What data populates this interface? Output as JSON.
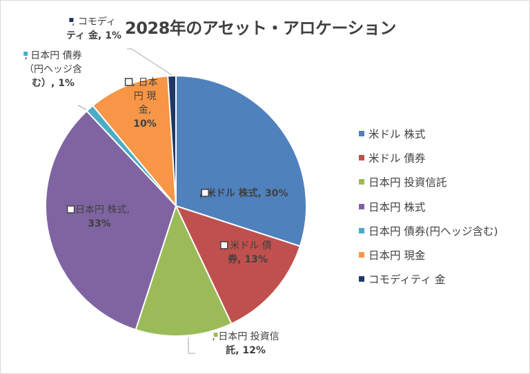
{
  "chart_data": {
    "type": "pie",
    "title": "2028年のアセット・アロケーション",
    "categories": [
      "米ドル 株式",
      "米ドル 債券",
      "日本円 投資信託",
      "日本円 株式",
      "日本円 債券(円ヘッジ含む)",
      "日本円 現金",
      "コモディティ 金"
    ],
    "values": [
      30,
      13,
      12,
      33,
      1,
      10,
      1
    ],
    "colors": [
      "#4f81bd",
      "#c0504d",
      "#9bbb59",
      "#8064a2",
      "#4bacc6",
      "#f79646",
      "#1f3864"
    ],
    "data_labels": [
      ", 米ドル 株式, 30%",
      ", 米ドル 債券, 13%",
      ", 日本円 投資信託, 12%",
      ", 日本円 株式, 33%",
      ", 日本円 債券 (円ヘッジ含む), 1%",
      ", 日本円 現金, 10%",
      ", コモディティ 金, 1%"
    ],
    "legend_position": "right"
  }
}
